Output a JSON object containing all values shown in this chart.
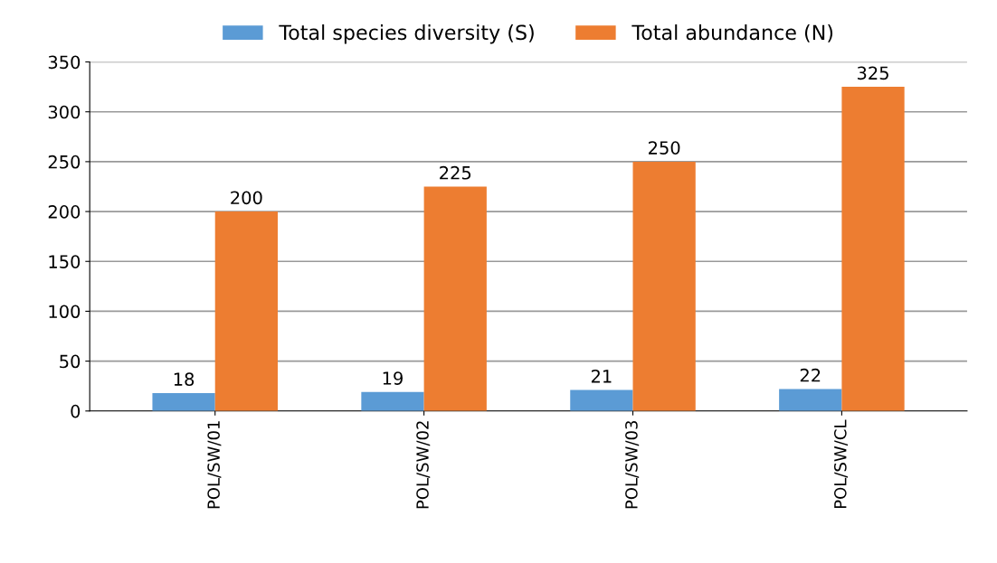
{
  "chart_data": {
    "type": "bar",
    "categories": [
      "POL/SW/01",
      "POL/SW/02",
      "POL/SW/03",
      "POL/SW/CL"
    ],
    "series": [
      {
        "name": "Total species diversity (S)",
        "color": "#5b9bd5",
        "values": [
          18,
          19,
          21,
          22
        ]
      },
      {
        "name": "Total abundance (N)",
        "color": "#ed7d31",
        "values": [
          200,
          225,
          250,
          325
        ]
      }
    ],
    "ylim": [
      0,
      350
    ],
    "yticks": [
      0,
      50,
      100,
      150,
      200,
      250,
      300,
      350
    ],
    "grid": "y",
    "legend": "top",
    "data_labels": true
  }
}
